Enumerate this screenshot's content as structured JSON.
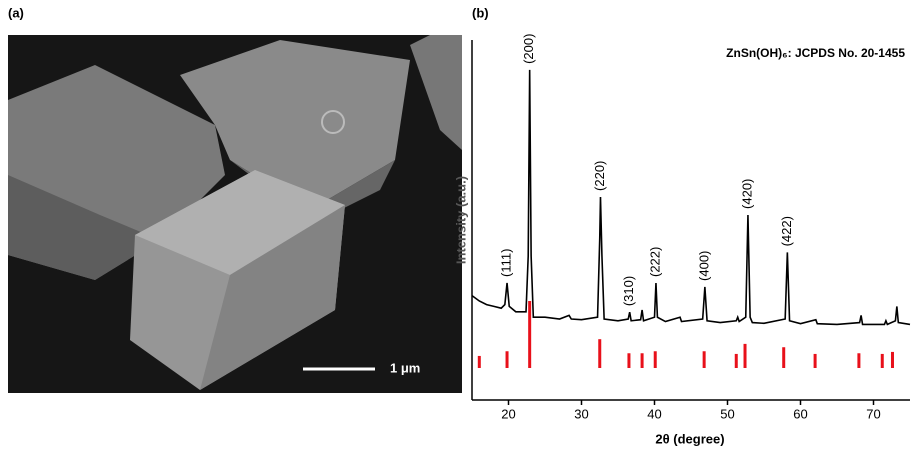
{
  "panel_a": {
    "label": "(a)",
    "scale_bar": "1 μm"
  },
  "chart_data": {
    "type": "line",
    "panel_label": "(b)",
    "title": "ZnSn(OH)₆: JCPDS No. 20-1455",
    "x_label": "2θ (degree)",
    "y_label": "Intensity (a.u.)",
    "grid": false,
    "xlim": [
      15,
      75
    ],
    "xticks": [
      20,
      30,
      40,
      50,
      60,
      70
    ],
    "ylim": [
      0,
      100
    ],
    "series": [
      {
        "color": "#000000",
        "x": [
          15,
          16,
          17,
          18,
          19,
          19.5,
          19.8,
          20.1,
          21,
          22.4,
          22.7,
          22.9,
          23.1,
          23.4,
          25,
          27,
          28.3,
          28.6,
          30,
          32.2,
          32.5,
          32.6,
          32.8,
          33.1,
          35,
          36.4,
          36.6,
          36.8,
          38.1,
          38.3,
          38.5,
          40,
          40.2,
          40.4,
          41.5,
          43.5,
          43.7,
          46.6,
          46.9,
          47.2,
          49,
          51.2,
          51.4,
          51.6,
          52.5,
          52.8,
          53.1,
          53.4,
          55,
          57.9,
          58.2,
          58.5,
          60,
          62.1,
          62.3,
          65,
          68.1,
          68.3,
          68.5,
          71.5,
          71.7,
          71.9,
          73,
          73.2,
          73.4,
          75
        ],
        "values": [
          29,
          27.5,
          26.5,
          26,
          25.5,
          26.5,
          32.5,
          26,
          24.5,
          24.5,
          40,
          91.7,
          40,
          23,
          23,
          22.5,
          23.5,
          22.5,
          22.3,
          23,
          45,
          56.4,
          40,
          22.5,
          22,
          22.5,
          24.4,
          22,
          22.3,
          25,
          22,
          23,
          32.5,
          23,
          21.8,
          23,
          21.8,
          22.5,
          31.4,
          22,
          21.5,
          22,
          23,
          21.8,
          23,
          51.4,
          23,
          21.5,
          21.3,
          22.5,
          41,
          22,
          21.2,
          22.3,
          21.2,
          21,
          21.5,
          23.5,
          21,
          21,
          22,
          21,
          22,
          26,
          21.5,
          21
        ]
      }
    ],
    "peak_labels": [
      {
        "text": "(111)",
        "x": 19.8
      },
      {
        "text": "(200)",
        "x": 22.9
      },
      {
        "text": "(220)",
        "x": 32.6
      },
      {
        "text": "(310)",
        "x": 36.6
      },
      {
        "text": "(222)",
        "x": 40.2
      },
      {
        "text": "(400)",
        "x": 46.9
      },
      {
        "text": "(420)",
        "x": 52.8
      },
      {
        "text": "(422)",
        "x": 58.2
      }
    ],
    "reference": {
      "color": "#e8101a",
      "x": [
        16,
        19.8,
        22.9,
        32.5,
        36.5,
        38.3,
        40.1,
        46.8,
        51.2,
        52.4,
        57.7,
        62,
        68,
        71.2,
        72.6
      ],
      "intensities": [
        18,
        25,
        100,
        43,
        22,
        22,
        25,
        25,
        21,
        36,
        31,
        21,
        22,
        21,
        24
      ]
    }
  }
}
